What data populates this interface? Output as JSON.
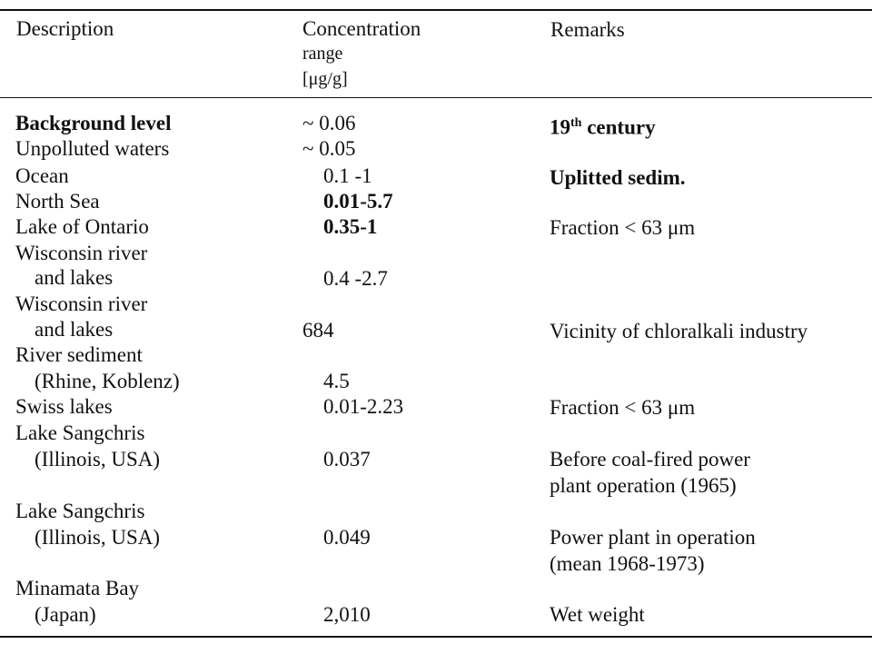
{
  "table": {
    "headers": {
      "description": "Description",
      "concentration": "Concentration",
      "concentration_sub1": "range",
      "concentration_sub2": "[μg/g]",
      "remarks": "Remarks"
    },
    "rows": [
      {
        "description": "Background level",
        "concentration": "~ 0.06",
        "remarks": "19th century"
      },
      {
        "description": "Unpolluted waters",
        "concentration": "~ 0.05",
        "remarks": ""
      },
      {
        "description": "Ocean",
        "concentration": "0.1  -1",
        "remarks": "Uplitted sedim."
      },
      {
        "description": "North Sea",
        "concentration": "0.01-5.7",
        "remarks": ""
      },
      {
        "description": "Lake of Ontario",
        "concentration": "0.35-1",
        "remarks": "Fraction < 63 μm"
      },
      {
        "description": "Wisconsin river",
        "description2": "and lakes",
        "concentration": "0.4  -2.7",
        "remarks": ""
      },
      {
        "description": "Wisconsin river",
        "description2": "and lakes",
        "concentration": "684",
        "remarks": "Vicinity of chloralkali industry"
      },
      {
        "description": "River sediment",
        "description2": "(Rhine, Koblenz)",
        "concentration": "4.5",
        "remarks": ""
      },
      {
        "description": "Swiss lakes",
        "concentration": "0.01-2.23",
        "remarks": "Fraction < 63 μm"
      },
      {
        "description": "Lake Sangchris",
        "description2": "(Illinois, USA)",
        "concentration": "0.037",
        "remarks": "Before coal-fired power",
        "remarks2": "plant operation (1965)"
      },
      {
        "description": "Lake Sangchris",
        "description2": "(Illinois, USA)",
        "concentration": "0.049",
        "remarks": "Power plant in operation",
        "remarks2": "(mean 1968-1973)"
      },
      {
        "description": "Minamata Bay",
        "description2": "(Japan)",
        "concentration": "2,010",
        "remarks": "Wet weight"
      }
    ]
  }
}
